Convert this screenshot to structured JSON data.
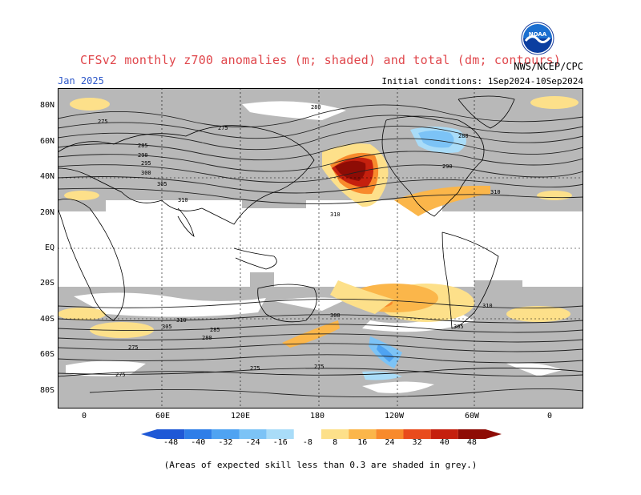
{
  "title": "CFSv2 monthly z700 anomalies (m; shaded) and total (dm; contours)",
  "month": "Jan 2025",
  "agency": "NWS/NCEP/CPC",
  "initial_conditions": "Initial conditions: 1Sep2024-10Sep2024",
  "logo_text": "NOAA",
  "lat_labels": [
    "80N",
    "60N",
    "40N",
    "20N",
    "EQ",
    "20S",
    "40S",
    "60S",
    "80S"
  ],
  "lon_labels": [
    "0",
    "60E",
    "120E",
    "180",
    "120W",
    "60W",
    "0"
  ],
  "contour_labels": [
    "275",
    "280",
    "285",
    "290",
    "295",
    "300",
    "305",
    "310"
  ],
  "colorbar_ticks": [
    "-48",
    "-40",
    "-32",
    "-24",
    "-16",
    "-8",
    "8",
    "16",
    "24",
    "32",
    "40",
    "48"
  ],
  "colorbar_colors": [
    "#1e58d6",
    "#2e7ee8",
    "#4fa3f2",
    "#7cc3f6",
    "#a9dcf8",
    "#ffffff",
    "#fde08a",
    "#fbb64a",
    "#f88a2c",
    "#e94b1c",
    "#c5200e",
    "#8e0c05"
  ],
  "skill_grey": "#b8b8b8",
  "footnote": "(Areas of expected skill less than 0.3 are shaded in grey.)"
}
